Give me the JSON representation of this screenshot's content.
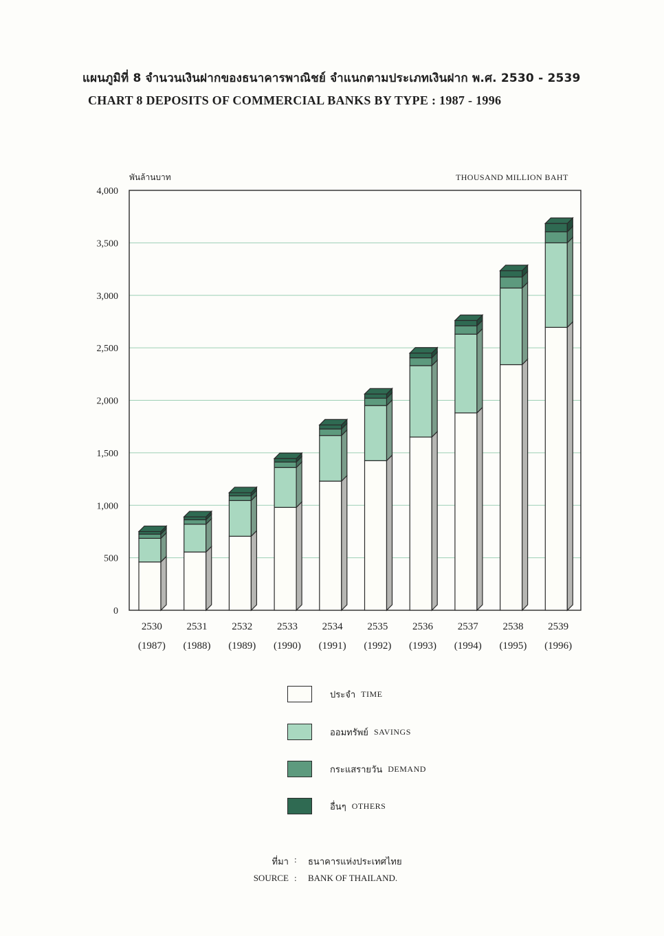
{
  "header": {
    "title_th": "แผนภูมิที่ 8  จำนวนเงินฝากของธนาคารพาณิชย์ จำแนกตามประเภทเงินฝาก พ.ศ. 2530 - 2539",
    "title_en": "CHART 8   DEPOSITS OF COMMERCIAL BANKS BY TYPE : 1987 - 1996"
  },
  "units": {
    "th": "พันล้านบาท",
    "en": "THOUSAND MILLION BAHT"
  },
  "legend": [
    {
      "th": "ประจำ",
      "en": "TIME",
      "color": "#fdfdf8"
    },
    {
      "th": "ออมทรัพย์",
      "en": "SAVINGS",
      "color": "#a9d8c0"
    },
    {
      "th": "กระแสรายวัน",
      "en": "DEMAND",
      "color": "#5d9a7e"
    },
    {
      "th": "อื่นๆ",
      "en": "OTHERS",
      "color": "#2f6a52"
    }
  ],
  "source": {
    "label_th": "ที่มา",
    "value_th": "ธนาคารแห่งประเทศไทย",
    "label_en": "SOURCE",
    "value_en": "BANK OF THAILAND.",
    "colon": ":"
  },
  "chart_data": {
    "type": "bar",
    "stacked": true,
    "style": "3d-stacked-columns",
    "categories": [
      "2530",
      "2531",
      "2532",
      "2533",
      "2534",
      "2535",
      "2536",
      "2537",
      "2538",
      "2539"
    ],
    "categories_secondary": [
      "(1987)",
      "(1988)",
      "(1989)",
      "(1990)",
      "(1991)",
      "(1992)",
      "(1993)",
      "(1994)",
      "(1995)",
      "(1996)"
    ],
    "series": [
      {
        "name": "ประจำ TIME",
        "color": "#fdfdf8",
        "values": [
          460,
          555,
          705,
          980,
          1230,
          1425,
          1650,
          1880,
          2340,
          2695
        ]
      },
      {
        "name": "ออมทรัพย์ SAVINGS",
        "color": "#a9d8c0",
        "values": [
          225,
          265,
          340,
          380,
          435,
          525,
          680,
          750,
          730,
          805
        ]
      },
      {
        "name": "กระแสรายวัน DEMAND",
        "color": "#5d9a7e",
        "values": [
          40,
          42,
          45,
          52,
          62,
          70,
          75,
          80,
          105,
          105
        ]
      },
      {
        "name": "อื่นๆ OTHERS",
        "color": "#2f6a52",
        "values": [
          25,
          28,
          30,
          33,
          38,
          40,
          45,
          50,
          60,
          80
        ]
      }
    ],
    "yticks": [
      "0",
      "500",
      "1,000",
      "1,500",
      "2,000",
      "2,500",
      "3,000",
      "3,500",
      "4,000"
    ],
    "ylim": [
      0,
      4000
    ],
    "ylabel": "พันล้านบาท",
    "ylabel_right": "THOUSAND MILLION BAHT",
    "grid": true,
    "legend_position": "bottom"
  }
}
